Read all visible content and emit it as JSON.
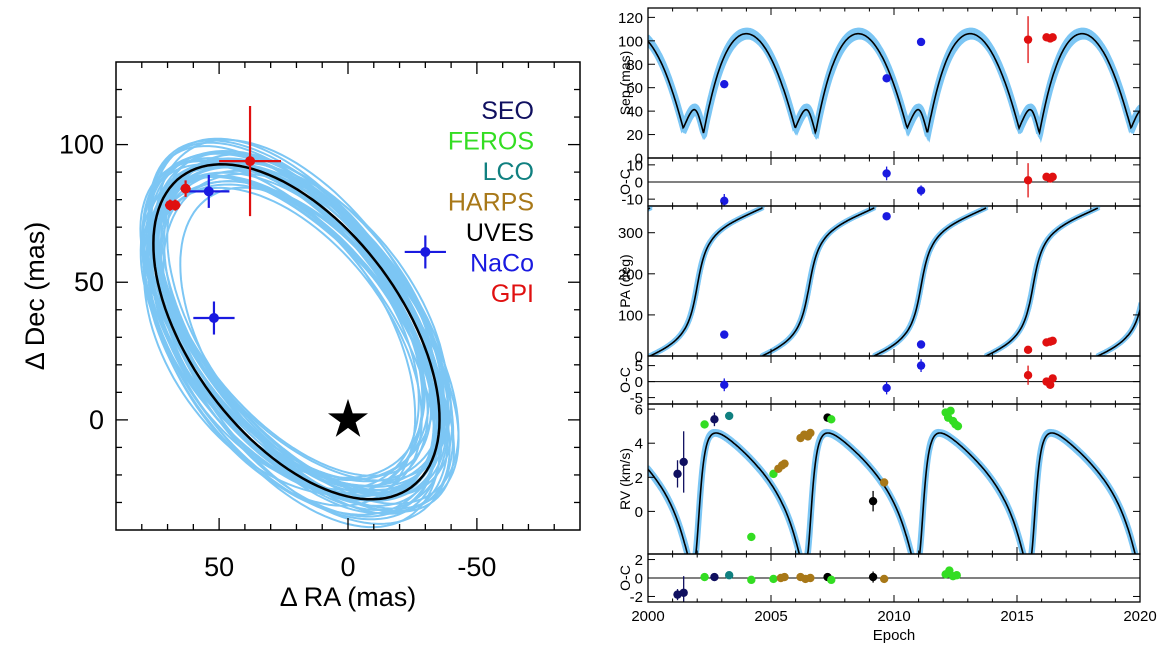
{
  "colors": {
    "orbit_fan": "#7cc6f4",
    "best_fit": "#000000",
    "SEO": "#101060",
    "FEROS": "#33dd22",
    "LCO": "#108080",
    "HARPS": "#a87818",
    "UVES": "#000000",
    "NaCo": "#1a1ae0",
    "GPI": "#e01010"
  },
  "chart_data": [
    {
      "type": "scatter",
      "id": "sky",
      "xlabel": "Δ RA (mas)",
      "ylabel": "Δ Dec (mas)",
      "xlim": [
        90,
        -90
      ],
      "ylim": [
        -40,
        130
      ],
      "xticks": [
        50,
        0,
        -50
      ],
      "yticks": [
        0,
        50,
        100
      ],
      "grid": false,
      "legend": {
        "placement": "top-right",
        "entries": [
          {
            "label": "SEO",
            "color": "#101060"
          },
          {
            "label": "FEROS",
            "color": "#33dd22"
          },
          {
            "label": "LCO",
            "color": "#108080"
          },
          {
            "label": "HARPS",
            "color": "#a87818"
          },
          {
            "label": "UVES",
            "color": "#000000"
          },
          {
            "label": "NaCo",
            "color": "#1a1ae0"
          },
          {
            "label": "GPI",
            "color": "#e01010"
          }
        ]
      },
      "star": {
        "x": 0,
        "y": 0
      },
      "best_orbit": {
        "center": [
          20,
          32
        ],
        "a": 72,
        "b": 40,
        "angle_deg": 50
      },
      "orbit_spread": {
        "count": 40,
        "center_jitter": 6,
        "a_jitter": 8,
        "b_jitter": 4,
        "angle_jitter": 4
      },
      "points": [
        {
          "inst": "NaCo",
          "x": 52,
          "y": 37,
          "xerr": 8,
          "yerr": 6
        },
        {
          "inst": "NaCo",
          "x": 54,
          "y": 83,
          "xerr": 8,
          "yerr": 6
        },
        {
          "inst": "NaCo",
          "x": -30,
          "y": 61,
          "xerr": 8,
          "yerr": 6
        },
        {
          "inst": "GPI",
          "x": 38,
          "y": 94,
          "xerr": 12,
          "yerr": 20
        },
        {
          "inst": "GPI",
          "x": 63,
          "y": 84,
          "xerr": 2,
          "yerr": 3
        },
        {
          "inst": "GPI",
          "x": 67,
          "y": 78,
          "xerr": 2,
          "yerr": 2
        },
        {
          "inst": "GPI",
          "x": 69,
          "y": 78,
          "xerr": 2,
          "yerr": 2
        }
      ]
    },
    {
      "type": "line",
      "id": "sep",
      "ylabel": "Sep (mas)",
      "xlim": [
        2000,
        2020
      ],
      "ylim": [
        0,
        128
      ],
      "yticks": [
        0,
        20,
        40,
        60,
        80,
        100,
        120
      ],
      "points": [
        {
          "inst": "NaCo",
          "x": 2003.1,
          "y": 63,
          "yerr": 3
        },
        {
          "inst": "NaCo",
          "x": 2009.7,
          "y": 68,
          "yerr": 3
        },
        {
          "inst": "NaCo",
          "x": 2011.1,
          "y": 99,
          "yerr": 3
        },
        {
          "inst": "GPI",
          "x": 2015.45,
          "y": 101,
          "yerr": 20
        },
        {
          "inst": "GPI",
          "x": 2016.2,
          "y": 103,
          "yerr": 2
        },
        {
          "inst": "GPI",
          "x": 2016.35,
          "y": 102,
          "yerr": 2
        },
        {
          "inst": "GPI",
          "x": 2016.45,
          "y": 103,
          "yerr": 2
        }
      ]
    },
    {
      "type": "scatter",
      "id": "sep_oc",
      "ylabel": "O-C",
      "xlim": [
        2000,
        2020
      ],
      "ylim": [
        -14,
        14
      ],
      "yticks": [
        -10,
        0,
        10
      ],
      "points": [
        {
          "inst": "NaCo",
          "x": 2003.1,
          "y": -11,
          "yerr": 4
        },
        {
          "inst": "NaCo",
          "x": 2009.7,
          "y": 5,
          "yerr": 4
        },
        {
          "inst": "NaCo",
          "x": 2011.1,
          "y": -5,
          "yerr": 3
        },
        {
          "inst": "GPI",
          "x": 2015.45,
          "y": 1,
          "yerr": 10
        },
        {
          "inst": "GPI",
          "x": 2016.2,
          "y": 3,
          "yerr": 2
        },
        {
          "inst": "GPI",
          "x": 2016.35,
          "y": 2,
          "yerr": 2
        },
        {
          "inst": "GPI",
          "x": 2016.45,
          "y": 3,
          "yerr": 2
        }
      ]
    },
    {
      "type": "line",
      "id": "pa",
      "ylabel": "PA (deg)",
      "xlim": [
        2000,
        2020
      ],
      "ylim": [
        0,
        365
      ],
      "yticks": [
        0,
        100,
        200,
        300
      ],
      "points": [
        {
          "inst": "NaCo",
          "x": 2003.1,
          "y": 52,
          "yerr": 5
        },
        {
          "inst": "NaCo",
          "x": 2009.7,
          "y": 340,
          "yerr": 5
        },
        {
          "inst": "NaCo",
          "x": 2011.1,
          "y": 28,
          "yerr": 5
        },
        {
          "inst": "GPI",
          "x": 2015.45,
          "y": 15,
          "yerr": 5
        },
        {
          "inst": "GPI",
          "x": 2016.2,
          "y": 33,
          "yerr": 3
        },
        {
          "inst": "GPI",
          "x": 2016.35,
          "y": 35,
          "yerr": 3
        },
        {
          "inst": "GPI",
          "x": 2016.45,
          "y": 37,
          "yerr": 3
        }
      ]
    },
    {
      "type": "scatter",
      "id": "pa_oc",
      "ylabel": "O-C",
      "xlim": [
        2000,
        2020
      ],
      "ylim": [
        -7,
        8
      ],
      "yticks": [
        -5,
        0,
        5
      ],
      "points": [
        {
          "inst": "NaCo",
          "x": 2003.1,
          "y": -1,
          "yerr": 2
        },
        {
          "inst": "NaCo",
          "x": 2009.7,
          "y": -2,
          "yerr": 2
        },
        {
          "inst": "NaCo",
          "x": 2011.1,
          "y": 5,
          "yerr": 2
        },
        {
          "inst": "GPI",
          "x": 2015.45,
          "y": 2,
          "yerr": 3
        },
        {
          "inst": "GPI",
          "x": 2016.2,
          "y": 0,
          "yerr": 1
        },
        {
          "inst": "GPI",
          "x": 2016.35,
          "y": -1,
          "yerr": 1
        },
        {
          "inst": "GPI",
          "x": 2016.45,
          "y": 1,
          "yerr": 1
        }
      ]
    },
    {
      "type": "line",
      "id": "rv",
      "ylabel": "RV (km/s)",
      "xlim": [
        2000,
        2020
      ],
      "ylim": [
        -2.5,
        6.3
      ],
      "yticks": [
        0,
        2,
        4,
        6
      ],
      "points": [
        {
          "inst": "SEO",
          "x": 2001.2,
          "y": 2.2,
          "yerr": 0.8
        },
        {
          "inst": "SEO",
          "x": 2001.45,
          "y": 2.9,
          "yerr": 1.8
        },
        {
          "inst": "FEROS",
          "x": 2002.3,
          "y": 5.1,
          "yerr": 0.2
        },
        {
          "inst": "SEO",
          "x": 2002.7,
          "y": 5.4,
          "yerr": 0.4
        },
        {
          "inst": "LCO",
          "x": 2003.3,
          "y": 5.6,
          "yerr": 0.2
        },
        {
          "inst": "FEROS",
          "x": 2004.2,
          "y": -1.5,
          "yerr": 0.1
        },
        {
          "inst": "FEROS",
          "x": 2005.1,
          "y": 2.2,
          "yerr": 0.1
        },
        {
          "inst": "HARPS",
          "x": 2005.3,
          "y": 2.5,
          "yerr": 0.1
        },
        {
          "inst": "HARPS",
          "x": 2005.45,
          "y": 2.7,
          "yerr": 0.1
        },
        {
          "inst": "HARPS",
          "x": 2005.55,
          "y": 2.8,
          "yerr": 0.1
        },
        {
          "inst": "HARPS",
          "x": 2006.2,
          "y": 4.3,
          "yerr": 0.1
        },
        {
          "inst": "HARPS",
          "x": 2006.35,
          "y": 4.5,
          "yerr": 0.1
        },
        {
          "inst": "HARPS",
          "x": 2006.5,
          "y": 4.4,
          "yerr": 0.1
        },
        {
          "inst": "HARPS",
          "x": 2006.6,
          "y": 4.6,
          "yerr": 0.1
        },
        {
          "inst": "UVES",
          "x": 2007.3,
          "y": 5.5,
          "yerr": 0.1
        },
        {
          "inst": "FEROS",
          "x": 2007.45,
          "y": 5.4,
          "yerr": 0.1
        },
        {
          "inst": "UVES",
          "x": 2009.15,
          "y": 0.6,
          "yerr": 0.6
        },
        {
          "inst": "HARPS",
          "x": 2009.6,
          "y": 1.7,
          "yerr": 0.1
        },
        {
          "inst": "FEROS",
          "x": 2012.1,
          "y": 5.8,
          "yerr": 0.2
        },
        {
          "inst": "FEROS",
          "x": 2012.2,
          "y": 5.5,
          "yerr": 0.2
        },
        {
          "inst": "FEROS",
          "x": 2012.3,
          "y": 5.9,
          "yerr": 0.2
        },
        {
          "inst": "FEROS",
          "x": 2012.4,
          "y": 5.3,
          "yerr": 0.2
        },
        {
          "inst": "FEROS",
          "x": 2012.5,
          "y": 5.1,
          "yerr": 0.2
        },
        {
          "inst": "FEROS",
          "x": 2012.6,
          "y": 5.0,
          "yerr": 0.2
        }
      ]
    },
    {
      "type": "scatter",
      "id": "rv_oc",
      "ylabel": "O-C",
      "xlabel": "Epoch",
      "xlim": [
        2000,
        2020
      ],
      "xticks": [
        2000,
        2005,
        2010,
        2015,
        2020
      ],
      "ylim": [
        -2.6,
        2.6
      ],
      "yticks": [
        -2,
        0,
        2
      ],
      "points": [
        {
          "inst": "SEO",
          "x": 2001.2,
          "y": -1.8,
          "yerr": 0.6
        },
        {
          "inst": "SEO",
          "x": 2001.45,
          "y": -1.6,
          "yerr": 1.8
        },
        {
          "inst": "FEROS",
          "x": 2002.3,
          "y": 0.1,
          "yerr": 0.2
        },
        {
          "inst": "SEO",
          "x": 2002.7,
          "y": 0.1,
          "yerr": 0.4
        },
        {
          "inst": "LCO",
          "x": 2003.3,
          "y": 0.3,
          "yerr": 0.2
        },
        {
          "inst": "FEROS",
          "x": 2004.2,
          "y": -0.2,
          "yerr": 0.1
        },
        {
          "inst": "FEROS",
          "x": 2005.1,
          "y": -0.1,
          "yerr": 0.1
        },
        {
          "inst": "HARPS",
          "x": 2005.4,
          "y": 0.0,
          "yerr": 0.1
        },
        {
          "inst": "HARPS",
          "x": 2005.55,
          "y": 0.1,
          "yerr": 0.1
        },
        {
          "inst": "HARPS",
          "x": 2006.2,
          "y": 0.1,
          "yerr": 0.1
        },
        {
          "inst": "HARPS",
          "x": 2006.4,
          "y": -0.1,
          "yerr": 0.1
        },
        {
          "inst": "HARPS",
          "x": 2006.6,
          "y": 0.0,
          "yerr": 0.1
        },
        {
          "inst": "UVES",
          "x": 2007.3,
          "y": 0.1,
          "yerr": 0.1
        },
        {
          "inst": "FEROS",
          "x": 2007.45,
          "y": -0.2,
          "yerr": 0.1
        },
        {
          "inst": "UVES",
          "x": 2009.15,
          "y": 0.1,
          "yerr": 0.6
        },
        {
          "inst": "HARPS",
          "x": 2009.6,
          "y": -0.1,
          "yerr": 0.1
        },
        {
          "inst": "FEROS",
          "x": 2012.1,
          "y": 0.4,
          "yerr": 0.2
        },
        {
          "inst": "FEROS",
          "x": 2012.25,
          "y": 0.8,
          "yerr": 0.2
        },
        {
          "inst": "FEROS",
          "x": 2012.4,
          "y": 0.2,
          "yerr": 0.2
        },
        {
          "inst": "FEROS",
          "x": 2012.55,
          "y": 0.3,
          "yerr": 0.2
        }
      ]
    }
  ]
}
